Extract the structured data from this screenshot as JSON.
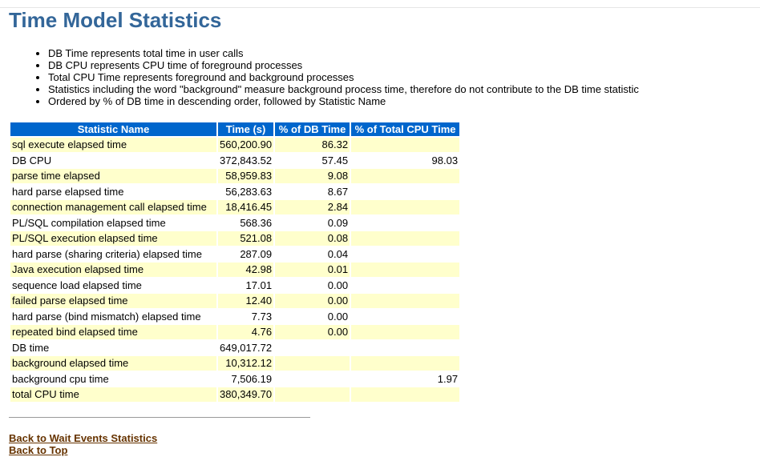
{
  "page": {
    "title": "Time Model Statistics"
  },
  "notes": [
    "DB Time represents total time in user calls",
    "DB CPU represents CPU time of foreground processes",
    "Total CPU Time represents foreground and background processes",
    "Statistics including the word \"background\" measure background process time, therefore do not contribute to the DB time statistic",
    "Ordered by % of DB time in descending order, followed by Statistic Name"
  ],
  "table": {
    "headers": [
      "Statistic Name",
      "Time (s)",
      "% of DB Time",
      "% of Total CPU Time"
    ],
    "rows": [
      [
        "sql execute elapsed time",
        "560,200.90",
        "86.32",
        ""
      ],
      [
        "DB CPU",
        "372,843.52",
        "57.45",
        "98.03"
      ],
      [
        "parse time elapsed",
        "58,959.83",
        "9.08",
        ""
      ],
      [
        "hard parse elapsed time",
        "56,283.63",
        "8.67",
        ""
      ],
      [
        "connection management call elapsed time",
        "18,416.45",
        "2.84",
        ""
      ],
      [
        "PL/SQL compilation elapsed time",
        "568.36",
        "0.09",
        ""
      ],
      [
        "PL/SQL execution elapsed time",
        "521.08",
        "0.08",
        ""
      ],
      [
        "hard parse (sharing criteria) elapsed time",
        "287.09",
        "0.04",
        ""
      ],
      [
        "Java execution elapsed time",
        "42.98",
        "0.01",
        ""
      ],
      [
        "sequence load elapsed time",
        "17.01",
        "0.00",
        ""
      ],
      [
        "failed parse elapsed time",
        "12.40",
        "0.00",
        ""
      ],
      [
        "hard parse (bind mismatch) elapsed time",
        "7.73",
        "0.00",
        ""
      ],
      [
        "repeated bind elapsed time",
        "4.76",
        "0.00",
        ""
      ],
      [
        "DB time",
        "649,017.72",
        "",
        ""
      ],
      [
        "background elapsed time",
        "10,312.12",
        "",
        ""
      ],
      [
        "background cpu time",
        "7,506.19",
        "",
        "1.97"
      ],
      [
        "total CPU time",
        "380,349.70",
        "",
        ""
      ]
    ]
  },
  "links": {
    "back_to_wait_events": "Back to Wait Events Statistics",
    "back_to_top": "Back to Top"
  },
  "colors": {
    "title": "#336699",
    "header_bg": "#0066cc",
    "row_highlight": "#ffffcc",
    "link": "#663300"
  }
}
